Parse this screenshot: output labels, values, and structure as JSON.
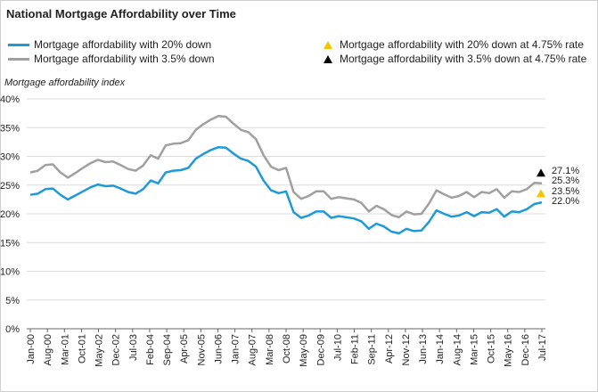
{
  "chart_data": {
    "type": "line",
    "title": "National Mortgage Affordability over Time",
    "ylabel": "Mortgage affordability index",
    "xlabel": "",
    "ylim": [
      0,
      40
    ],
    "y_ticks": [
      "0%",
      "5%",
      "10%",
      "15%",
      "20%",
      "25%",
      "30%",
      "35%",
      "40%"
    ],
    "x_tick_labels": [
      "Jan-00",
      "Aug-00",
      "Mar-01",
      "Oct-01",
      "May-02",
      "Dec-02",
      "Jul-03",
      "Feb-04",
      "Sep-04",
      "Apr-05",
      "Nov-05",
      "Jun-06",
      "Jan-07",
      "Aug-07",
      "Mar-08",
      "Oct-08",
      "May-09",
      "Dec-09",
      "Jul-10",
      "Feb-11",
      "Sep-11",
      "Apr-12",
      "Nov-12",
      "Jun-13",
      "Jan-14",
      "Aug-14",
      "Mar-15",
      "Oct-15",
      "May-16",
      "Dec-16",
      "Jul-17"
    ],
    "grid": true,
    "legend_position": "top",
    "series": [
      {
        "name": "Mortgage affordability with 20% down",
        "color": "#1f9ad6",
        "values": [
          23.3,
          23.5,
          24.3,
          24.4,
          23.3,
          22.5,
          23.2,
          23.9,
          24.6,
          25.1,
          24.8,
          24.9,
          24.4,
          23.8,
          23.5,
          24.3,
          25.8,
          25.3,
          27.2,
          27.5,
          27.6,
          28.0,
          29.6,
          30.4,
          31.1,
          31.6,
          31.5,
          30.5,
          29.6,
          29.2,
          28.2,
          25.8,
          24.1,
          23.6,
          23.9,
          20.3,
          19.3,
          19.7,
          20.4,
          20.4,
          19.3,
          19.6,
          19.4,
          19.2,
          18.7,
          17.4,
          18.3,
          17.8,
          16.9,
          16.6,
          17.4,
          17.0,
          17.1,
          18.6,
          20.6,
          20.0,
          19.5,
          19.7,
          20.3,
          19.6,
          20.3,
          20.2,
          20.8,
          19.5,
          20.4,
          20.3,
          20.8,
          21.7,
          22.0
        ]
      },
      {
        "name": "Mortgage affordability with 3.5% down",
        "color": "#a0a0a0",
        "values": [
          27.2,
          27.5,
          28.5,
          28.6,
          27.2,
          26.3,
          27.1,
          28.0,
          28.8,
          29.4,
          29.0,
          29.1,
          28.5,
          27.8,
          27.5,
          28.4,
          30.2,
          29.6,
          31.9,
          32.2,
          32.3,
          32.8,
          34.6,
          35.6,
          36.4,
          37.0,
          36.9,
          35.7,
          34.6,
          34.2,
          33.0,
          30.2,
          28.2,
          27.6,
          28.0,
          23.8,
          22.6,
          23.1,
          23.9,
          23.9,
          22.6,
          22.9,
          22.7,
          22.5,
          21.9,
          20.4,
          21.4,
          20.8,
          19.8,
          19.4,
          20.4,
          19.9,
          20.0,
          21.8,
          24.1,
          23.4,
          22.8,
          23.1,
          23.8,
          22.9,
          23.8,
          23.6,
          24.3,
          22.8,
          23.9,
          23.8,
          24.3,
          25.4,
          25.3
        ]
      }
    ],
    "markers": [
      {
        "name": "Mortgage affordability with 20% down at 4.75% rate",
        "color": "#f5c400",
        "value": 23.5,
        "label": "23.5%"
      },
      {
        "name": "Mortgage affordability with 3.5% down at 4.75% rate",
        "color": "#000000",
        "value": 27.1,
        "label": "27.1%"
      }
    ],
    "end_labels": [
      "27.1%",
      "25.3%",
      "23.5%",
      "22.0%"
    ]
  }
}
